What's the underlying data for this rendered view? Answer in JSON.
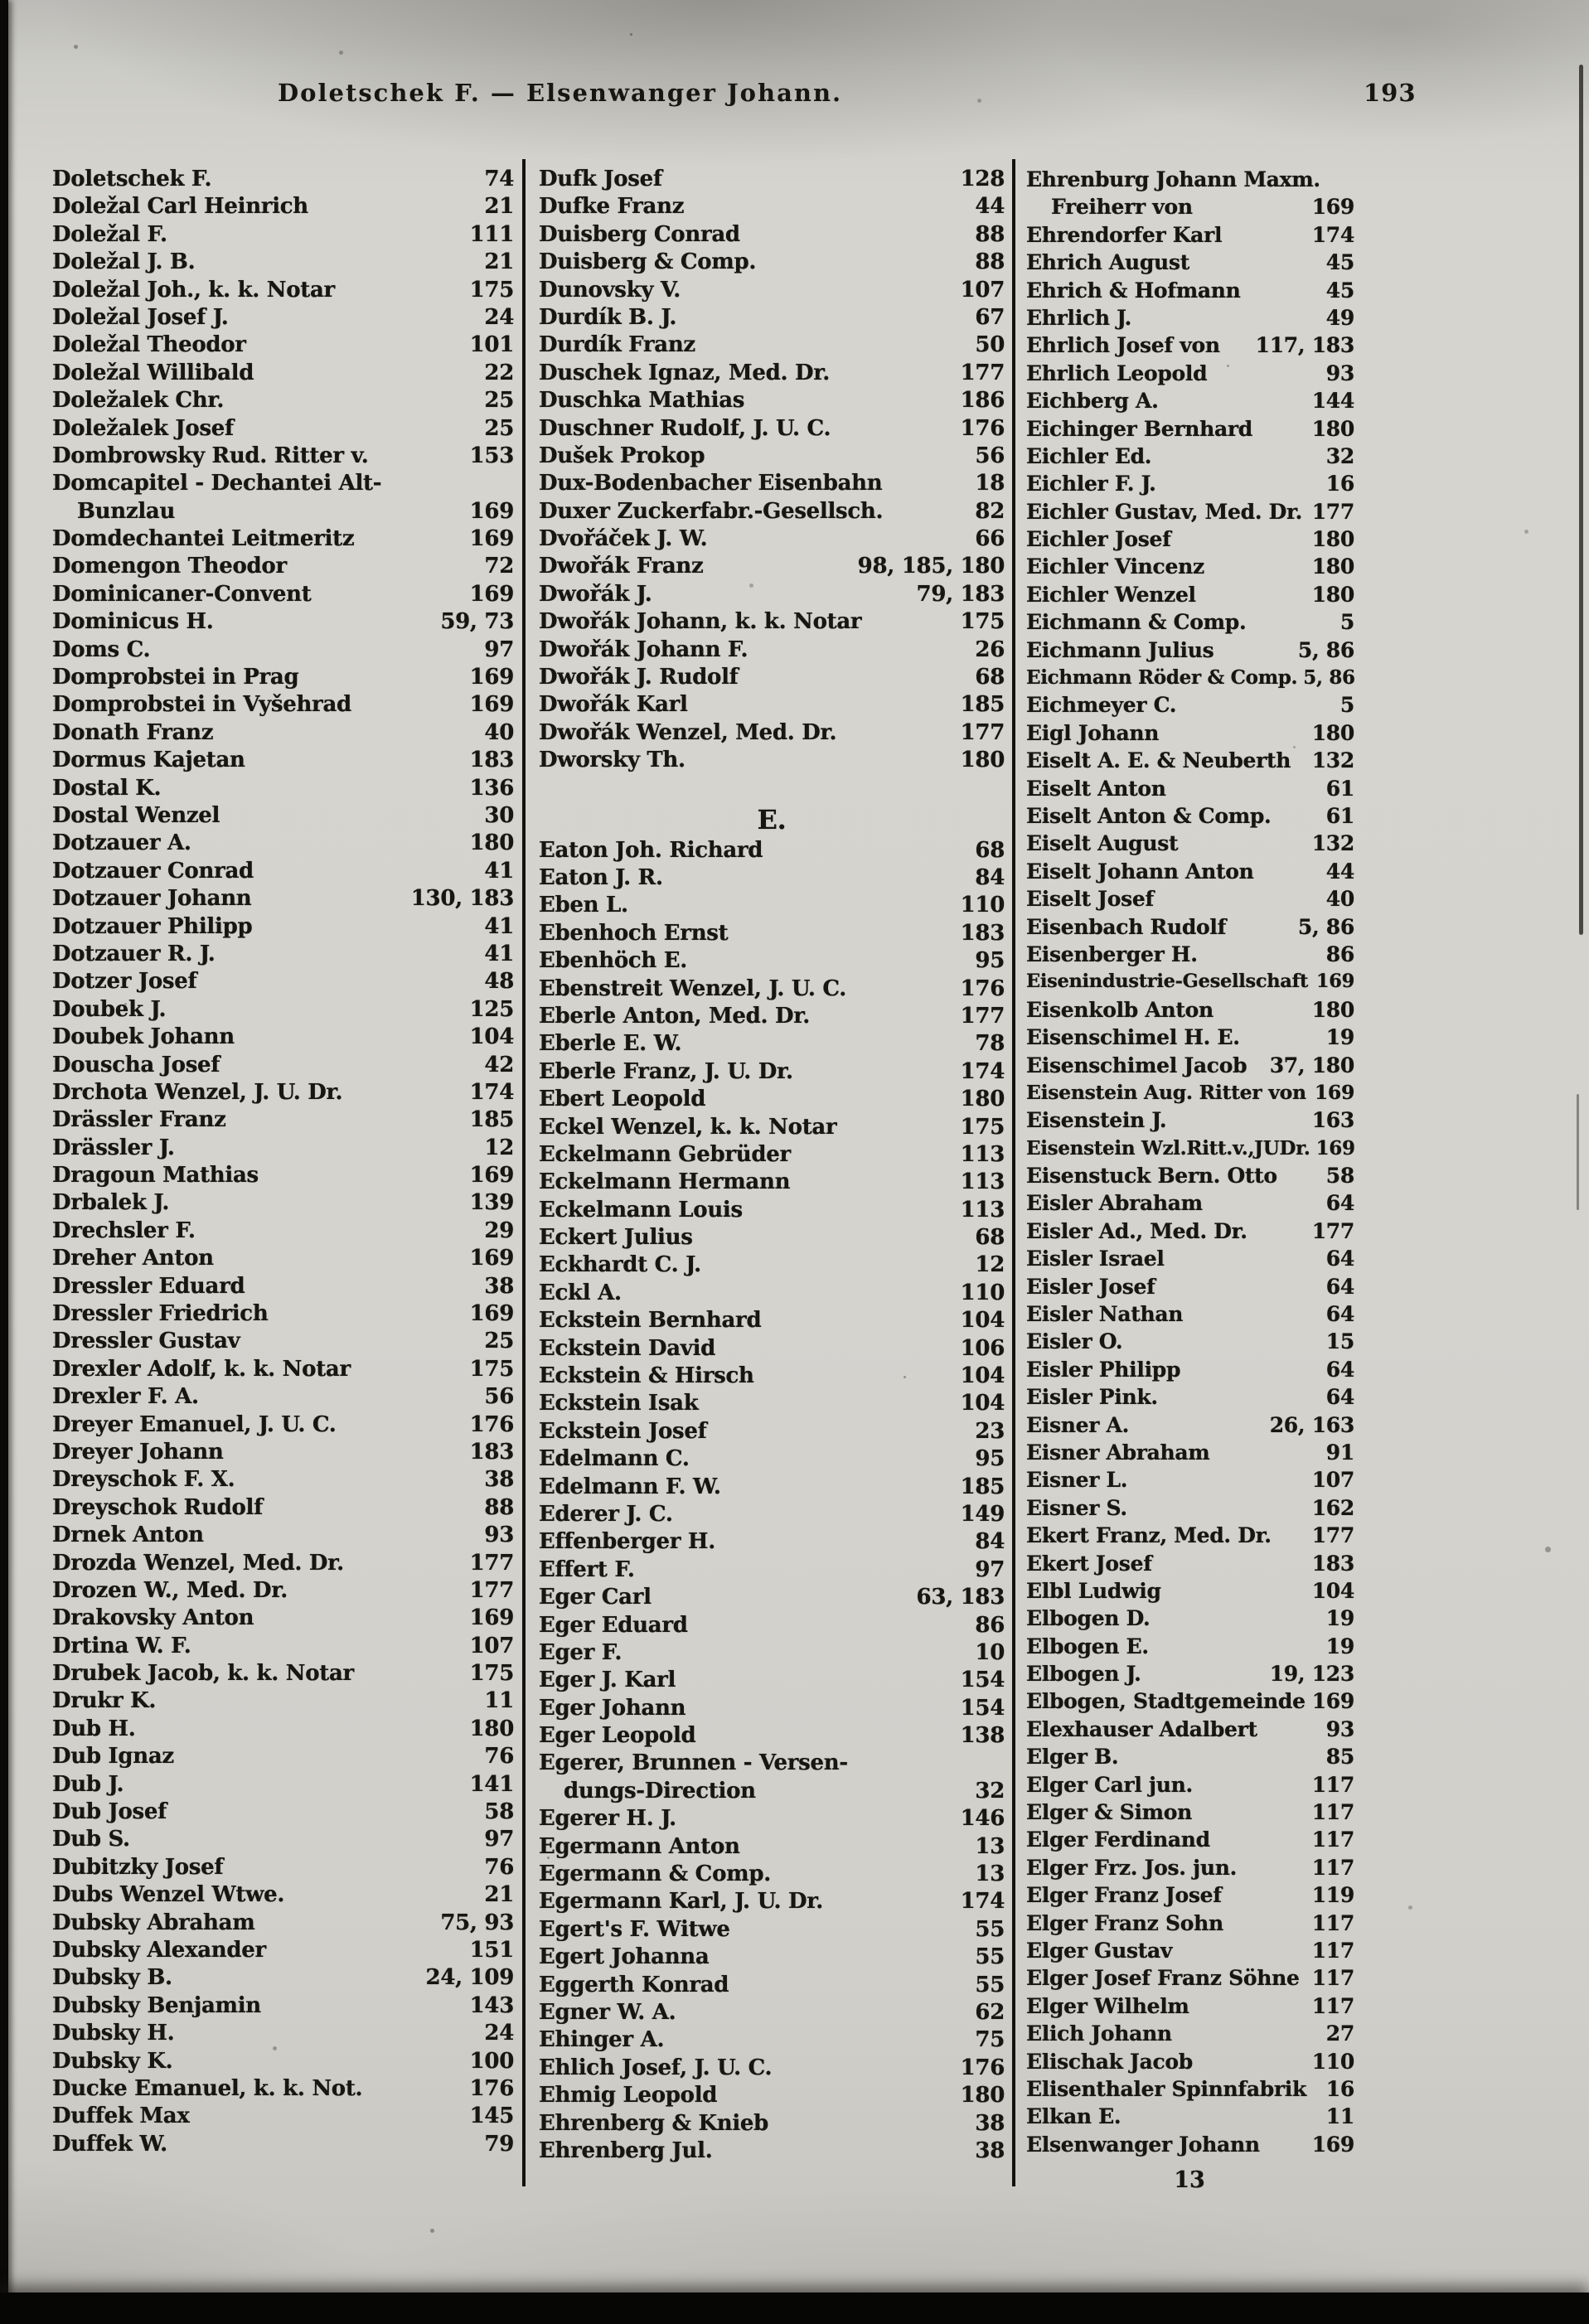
{
  "header": {
    "title": "Doletschek F. — Elsenwanger Johann.",
    "page_number": "193"
  },
  "footer": {
    "signature_mark": "13"
  },
  "colors": {
    "paper": "#d3d1cc",
    "ink": "#181611"
  },
  "columns": [
    {
      "rows": [
        {
          "name": "Doletschek F.",
          "page": "74"
        },
        {
          "name": "Doležal Carl Heinrich",
          "page": "21"
        },
        {
          "name": "Doležal F.",
          "page": "111"
        },
        {
          "name": "Doležal J. B.",
          "page": "21"
        },
        {
          "name": "Doležal Joh., k. k. Notar",
          "page": "175"
        },
        {
          "name": "Doležal Josef J.",
          "page": "24"
        },
        {
          "name": "Doležal Theodor",
          "page": "101"
        },
        {
          "name": "Doležal Willibald",
          "page": "22"
        },
        {
          "name": "Doležalek Chr.",
          "page": "25"
        },
        {
          "name": "Doležalek Josef",
          "page": "25"
        },
        {
          "name": "Dombrowsky Rud. Ritter v.",
          "page": "153"
        },
        {
          "name": "Domcapitel - Dechantei Alt-"
        },
        {
          "name": "Bunzlau",
          "page": "169",
          "indent": true
        },
        {
          "name": "Domdechantei Leitmeritz",
          "page": "169"
        },
        {
          "name": "Domengon Theodor",
          "page": "72"
        },
        {
          "name": "Dominicaner-Convent",
          "page": "169"
        },
        {
          "name": "Dominicus H.",
          "page": "59, 73"
        },
        {
          "name": "Doms C.",
          "page": "97"
        },
        {
          "name": "Domprobstei in Prag",
          "page": "169"
        },
        {
          "name": "Domprobstei in Vyšehrad",
          "page": "169"
        },
        {
          "name": "Donath Franz",
          "page": "40"
        },
        {
          "name": "Dormus Kajetan",
          "page": "183"
        },
        {
          "name": "Dostal K.",
          "page": "136"
        },
        {
          "name": "Dostal Wenzel",
          "page": "30"
        },
        {
          "name": "Dotzauer A.",
          "page": "180"
        },
        {
          "name": "Dotzauer Conrad",
          "page": "41"
        },
        {
          "name": "Dotzauer Johann",
          "page": "130, 183"
        },
        {
          "name": "Dotzauer Philipp",
          "page": "41"
        },
        {
          "name": "Dotzauer R. J.",
          "page": "41"
        },
        {
          "name": "Dotzer Josef",
          "page": "48"
        },
        {
          "name": "Doubek J.",
          "page": "125"
        },
        {
          "name": "Doubek Johann",
          "page": "104"
        },
        {
          "name": "Douscha Josef",
          "page": "42"
        },
        {
          "name": "Drchota Wenzel, J. U. Dr.",
          "page": "174"
        },
        {
          "name": "Drässler Franz",
          "page": "185"
        },
        {
          "name": "Drässler J.",
          "page": "12"
        },
        {
          "name": "Dragoun Mathias",
          "page": "169"
        },
        {
          "name": "Drbalek J.",
          "page": "139"
        },
        {
          "name": "Drechsler F.",
          "page": "29"
        },
        {
          "name": "Dreher Anton",
          "page": "169"
        },
        {
          "name": "Dressler Eduard",
          "page": "38"
        },
        {
          "name": "Dressler Friedrich",
          "page": "169"
        },
        {
          "name": "Dressler Gustav",
          "page": "25"
        },
        {
          "name": "Drexler Adolf, k. k. Notar",
          "page": "175"
        },
        {
          "name": "Drexler F. A.",
          "page": "56"
        },
        {
          "name": "Dreyer Emanuel, J. U. C.",
          "page": "176"
        },
        {
          "name": "Dreyer Johann",
          "page": "183"
        },
        {
          "name": "Dreyschok F. X.",
          "page": "38"
        },
        {
          "name": "Dreyschok Rudolf",
          "page": "88"
        },
        {
          "name": "Drnek Anton",
          "page": "93"
        },
        {
          "name": "Drozda Wenzel, Med. Dr.",
          "page": "177"
        },
        {
          "name": "Drozen W., Med. Dr.",
          "page": "177"
        },
        {
          "name": "Drakovsky Anton",
          "page": "169"
        },
        {
          "name": "Drtina W. F.",
          "page": "107"
        },
        {
          "name": "Drubek Jacob, k. k. Notar",
          "page": "175"
        },
        {
          "name": "Drukr K.",
          "page": "11"
        },
        {
          "name": "Dub H.",
          "page": "180"
        },
        {
          "name": "Dub Ignaz",
          "page": "76"
        },
        {
          "name": "Dub J.",
          "page": "141"
        },
        {
          "name": "Dub Josef",
          "page": "58"
        },
        {
          "name": "Dub S.",
          "page": "97"
        },
        {
          "name": "Dubitzky Josef",
          "page": "76"
        },
        {
          "name": "Dubs Wenzel Wtwe.",
          "page": "21"
        },
        {
          "name": "Dubsky Abraham",
          "page": "75, 93"
        },
        {
          "name": "Dubsky Alexander",
          "page": "151"
        },
        {
          "name": "Dubsky B.",
          "page": "24, 109"
        },
        {
          "name": "Dubsky Benjamin",
          "page": "143"
        },
        {
          "name": "Dubsky H.",
          "page": "24"
        },
        {
          "name": "Dubsky K.",
          "page": "100"
        },
        {
          "name": "Ducke Emanuel, k. k. Not.",
          "page": "176"
        },
        {
          "name": "Duffek Max",
          "page": "145"
        },
        {
          "name": "Duffek W.",
          "page": "79"
        }
      ]
    },
    {
      "rows": [
        {
          "name": "Dufk Josef",
          "page": "128"
        },
        {
          "name": "Dufke Franz",
          "page": "44"
        },
        {
          "name": "Duisberg Conrad",
          "page": "88"
        },
        {
          "name": "Duisberg & Comp.",
          "page": "88"
        },
        {
          "name": "Dunovsky V.",
          "page": "107"
        },
        {
          "name": "Durdík B. J.",
          "page": "67"
        },
        {
          "name": "Durdík Franz",
          "page": "50"
        },
        {
          "name": "Duschek Ignaz, Med. Dr.",
          "page": "177"
        },
        {
          "name": "Duschka Mathias",
          "page": "186"
        },
        {
          "name": "Duschner Rudolf, J. U. C.",
          "page": "176"
        },
        {
          "name": "Dušek Prokop",
          "page": "56"
        },
        {
          "name": "Dux-Bodenbacher Eisenbahn",
          "page": "18"
        },
        {
          "name": "Duxer Zuckerfabr.-Gesellsch.",
          "page": "82"
        },
        {
          "name": "Dvořáček J. W.",
          "page": "66"
        },
        {
          "name": "Dwořák Franz",
          "page": "98, 185, 180"
        },
        {
          "name": "Dwořák J.",
          "page": "79, 183"
        },
        {
          "name": "Dwořák Johann, k. k. Notar",
          "page": "175"
        },
        {
          "name": "Dwořák Johann F.",
          "page": "26"
        },
        {
          "name": "Dwořák J. Rudolf",
          "page": "68"
        },
        {
          "name": "Dwořák Karl",
          "page": "185"
        },
        {
          "name": "Dwořák Wenzel, Med. Dr.",
          "page": "177"
        },
        {
          "name": "Dworsky Th.",
          "page": "180"
        },
        {
          "section": "E."
        },
        {
          "name": "Eaton Joh. Richard",
          "page": "68"
        },
        {
          "name": "Eaton J. R.",
          "page": "84"
        },
        {
          "name": "Eben L.",
          "page": "110"
        },
        {
          "name": "Ebenhoch Ernst",
          "page": "183"
        },
        {
          "name": "Ebenhöch E.",
          "page": "95"
        },
        {
          "name": "Ebenstreit Wenzel, J. U. C.",
          "page": "176"
        },
        {
          "name": "Eberle Anton, Med. Dr.",
          "page": "177"
        },
        {
          "name": "Eberle E. W.",
          "page": "78"
        },
        {
          "name": "Eberle Franz, J. U. Dr.",
          "page": "174"
        },
        {
          "name": "Ebert Leopold",
          "page": "180"
        },
        {
          "name": "Eckel Wenzel, k. k. Notar",
          "page": "175"
        },
        {
          "name": "Eckelmann Gebrüder",
          "page": "113"
        },
        {
          "name": "Eckelmann Hermann",
          "page": "113"
        },
        {
          "name": "Eckelmann Louis",
          "page": "113"
        },
        {
          "name": "Eckert Julius",
          "page": "68"
        },
        {
          "name": "Eckhardt C. J.",
          "page": "12"
        },
        {
          "name": "Eckl A.",
          "page": "110"
        },
        {
          "name": "Eckstein Bernhard",
          "page": "104"
        },
        {
          "name": "Eckstein David",
          "page": "106"
        },
        {
          "name": "Eckstein & Hirsch",
          "page": "104"
        },
        {
          "name": "Eckstein Isak",
          "page": "104"
        },
        {
          "name": "Eckstein Josef",
          "page": "23"
        },
        {
          "name": "Edelmann C.",
          "page": "95"
        },
        {
          "name": "Edelmann F. W.",
          "page": "185"
        },
        {
          "name": "Ederer J. C.",
          "page": "149"
        },
        {
          "name": "Effenberger H.",
          "page": "84"
        },
        {
          "name": "Effert F.",
          "page": "97"
        },
        {
          "name": "Eger Carl",
          "page": "63, 183"
        },
        {
          "name": "Eger Eduard",
          "page": "86"
        },
        {
          "name": "Eger F.",
          "page": "10"
        },
        {
          "name": "Eger J. Karl",
          "page": "154"
        },
        {
          "name": "Eger Johann",
          "page": "154"
        },
        {
          "name": "Eger Leopold",
          "page": "138"
        },
        {
          "name": "Egerer, Brunnen - Versen-"
        },
        {
          "name": "dungs-Direction",
          "page": "32",
          "indent": true
        },
        {
          "name": "Egerer H. J.",
          "page": "146"
        },
        {
          "name": "Egermann Anton",
          "page": "13"
        },
        {
          "name": "Egermann & Comp.",
          "page": "13"
        },
        {
          "name": "Egermann Karl, J. U. Dr.",
          "page": "174"
        },
        {
          "name": "Egert's F. Witwe",
          "page": "55"
        },
        {
          "name": "Egert Johanna",
          "page": "55"
        },
        {
          "name": "Eggerth Konrad",
          "page": "55"
        },
        {
          "name": "Egner W. A.",
          "page": "62"
        },
        {
          "name": "Ehinger A.",
          "page": "75"
        },
        {
          "name": "Ehlich Josef, J. U. C.",
          "page": "176"
        },
        {
          "name": "Ehmig Leopold",
          "page": "180"
        },
        {
          "name": "Ehrenberg & Knieb",
          "page": "38"
        },
        {
          "name": "Ehrenberg Jul.",
          "page": "38"
        }
      ]
    },
    {
      "rows": [
        {
          "name": "Ehrenburg Johann Maxm."
        },
        {
          "name": "Freiherr von",
          "page": "169",
          "indent": true
        },
        {
          "name": "Ehrendorfer Karl",
          "page": "174"
        },
        {
          "name": "Ehrich August",
          "page": "45"
        },
        {
          "name": "Ehrich & Hofmann",
          "page": "45"
        },
        {
          "name": "Ehrlich J.",
          "page": "49"
        },
        {
          "name": "Ehrlich Josef von",
          "page": "117, 183"
        },
        {
          "name": "Ehrlich Leopold",
          "page": "93"
        },
        {
          "name": "Eichberg A.",
          "page": "144"
        },
        {
          "name": "Eichinger Bernhard",
          "page": "180"
        },
        {
          "name": "Eichler Ed.",
          "page": "32"
        },
        {
          "name": "Eichler F. J.",
          "page": "16"
        },
        {
          "name": "Eichler Gustav, Med. Dr.",
          "page": "177"
        },
        {
          "name": "Eichler Josef",
          "page": "180"
        },
        {
          "name": "Eichler Vincenz",
          "page": "180"
        },
        {
          "name": "Eichler Wenzel",
          "page": "180"
        },
        {
          "name": "Eichmann & Comp.",
          "page": "5"
        },
        {
          "name": "Eichmann Julius",
          "page": "5, 86"
        },
        {
          "name": "Eichmann Röder & Comp.",
          "page": "5, 86"
        },
        {
          "name": "Eichmeyer C.",
          "page": "5"
        },
        {
          "name": "Eigl Johann",
          "page": "180"
        },
        {
          "name": "Eiselt A. E. & Neuberth",
          "page": "132"
        },
        {
          "name": "Eiselt Anton",
          "page": "61"
        },
        {
          "name": "Eiselt Anton & Comp.",
          "page": "61"
        },
        {
          "name": "Eiselt August",
          "page": "132"
        },
        {
          "name": "Eiselt Johann Anton",
          "page": "44"
        },
        {
          "name": "Eiselt Josef",
          "page": "40"
        },
        {
          "name": "Eisenbach Rudolf",
          "page": "5, 86"
        },
        {
          "name": "Eisenberger H.",
          "page": "86"
        },
        {
          "name": "Eisenindustrie-Gesellschaft",
          "page": "169"
        },
        {
          "name": "Eisenkolb Anton",
          "page": "180"
        },
        {
          "name": "Eisenschimel H. E.",
          "page": "19"
        },
        {
          "name": "Eisenschimel Jacob",
          "page": "37, 180"
        },
        {
          "name": "Eisenstein Aug. Ritter von",
          "page": "169"
        },
        {
          "name": "Eisenstein J.",
          "page": "163"
        },
        {
          "name": "Eisenstein Wzl.Ritt.v.,JUDr.",
          "page": "169"
        },
        {
          "name": "Eisenstuck Bern. Otto",
          "page": "58"
        },
        {
          "name": "Eisler Abraham",
          "page": "64"
        },
        {
          "name": "Eisler Ad., Med. Dr.",
          "page": "177"
        },
        {
          "name": "Eisler Israel",
          "page": "64"
        },
        {
          "name": "Eisler Josef",
          "page": "64"
        },
        {
          "name": "Eisler Nathan",
          "page": "64"
        },
        {
          "name": "Eisler O.",
          "page": "15"
        },
        {
          "name": "Eisler Philipp",
          "page": "64"
        },
        {
          "name": "Eisler Pink.",
          "page": "64"
        },
        {
          "name": "Eisner A.",
          "page": "26, 163"
        },
        {
          "name": "Eisner Abraham",
          "page": "91"
        },
        {
          "name": "Eisner L.",
          "page": "107"
        },
        {
          "name": "Eisner S.",
          "page": "162"
        },
        {
          "name": "Ekert Franz, Med. Dr.",
          "page": "177"
        },
        {
          "name": "Ekert Josef",
          "page": "183"
        },
        {
          "name": "Elbl Ludwig",
          "page": "104"
        },
        {
          "name": "Elbogen D.",
          "page": "19"
        },
        {
          "name": "Elbogen E.",
          "page": "19"
        },
        {
          "name": "Elbogen J.",
          "page": "19, 123"
        },
        {
          "name": "Elbogen, Stadtgemeinde",
          "page": "169"
        },
        {
          "name": "Elexhauser Adalbert",
          "page": "93"
        },
        {
          "name": "Elger B.",
          "page": "85"
        },
        {
          "name": "Elger Carl jun.",
          "page": "117"
        },
        {
          "name": "Elger & Simon",
          "page": "117"
        },
        {
          "name": "Elger Ferdinand",
          "page": "117"
        },
        {
          "name": "Elger Frz. Jos. jun.",
          "page": "117"
        },
        {
          "name": "Elger Franz Josef",
          "page": "119"
        },
        {
          "name": "Elger Franz Sohn",
          "page": "117"
        },
        {
          "name": "Elger Gustav",
          "page": "117"
        },
        {
          "name": "Elger Josef Franz Söhne",
          "page": "117"
        },
        {
          "name": "Elger Wilhelm",
          "page": "117"
        },
        {
          "name": "Elich Johann",
          "page": "27"
        },
        {
          "name": "Elischak Jacob",
          "page": "110"
        },
        {
          "name": "Elisenthaler Spinnfabrik",
          "page": "16"
        },
        {
          "name": "Elkan E.",
          "page": "11"
        },
        {
          "name": "Elsenwanger Johann",
          "page": "169"
        }
      ]
    }
  ]
}
